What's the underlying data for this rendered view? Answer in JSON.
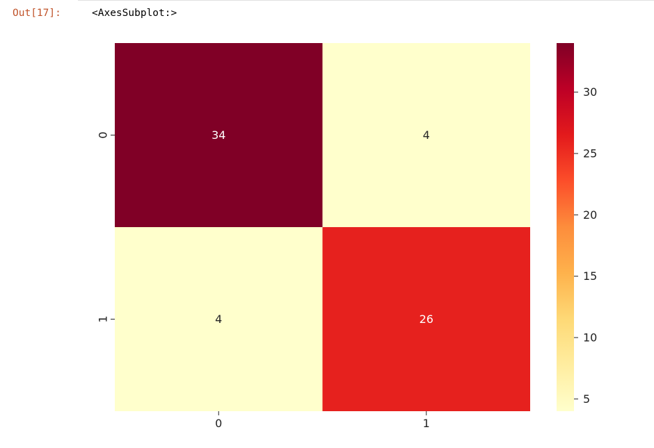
{
  "cell": {
    "prompt": "Out[17]:",
    "output_text": "<AxesSubplot:>"
  },
  "chart_data": {
    "type": "heatmap",
    "colormap": "YlOrRd",
    "row_labels": [
      "0",
      "1"
    ],
    "col_labels": [
      "0",
      "1"
    ],
    "values": [
      [
        34,
        4
      ],
      [
        4,
        26
      ]
    ],
    "annotations": true,
    "vmin": 4,
    "vmax": 34,
    "colorbar": {
      "ticks": [
        "5",
        "10",
        "15",
        "20",
        "25",
        "30"
      ],
      "placement": "right"
    },
    "colors": {
      "34": "#800026",
      "26": "#e3271f",
      "4": "#ffffcc"
    }
  }
}
